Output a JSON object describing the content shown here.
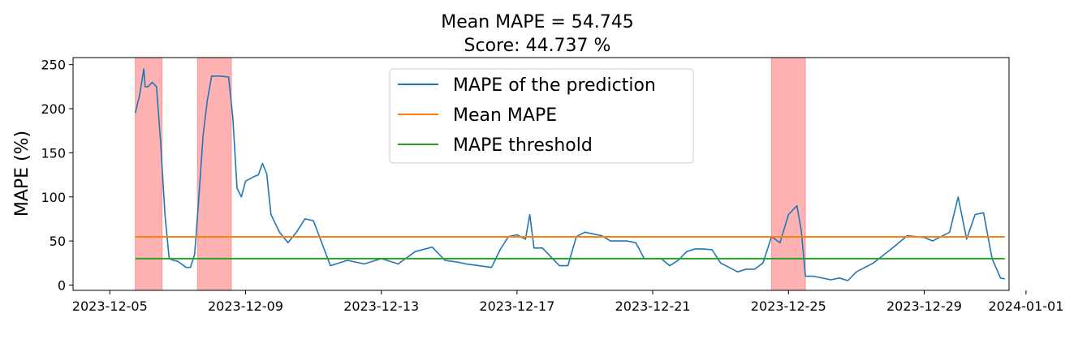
{
  "chart_data": {
    "type": "line",
    "title": "Mean MAPE = 54.745",
    "subtitle": "Score: 44.737 %",
    "xlabel": "",
    "ylabel": "MAPE (%)",
    "xlim": [
      "2023-12-03T22:00",
      "2023-12-31T12:00"
    ],
    "ylim": [
      -6,
      258
    ],
    "x_ticks": [
      "2023-12-05",
      "2023-12-09",
      "2023-12-13",
      "2023-12-17",
      "2023-12-21",
      "2023-12-25",
      "2023-12-29",
      "2024-01-01"
    ],
    "x_tick_labels": [
      "2023-12-05",
      "2023-12-09",
      "2023-12-13",
      "2023-12-17",
      "2023-12-21",
      "2023-12-25",
      "2023-12-29",
      "2024-01-01"
    ],
    "y_ticks": [
      0,
      50,
      100,
      150,
      200,
      250
    ],
    "y_tick_labels": [
      "0",
      "50",
      "100",
      "150",
      "200",
      "250"
    ],
    "grid": false,
    "legend_position": "top-center",
    "highlight_color": "#ff0000",
    "highlighted_ranges": [
      [
        "2023-12-05T18:00",
        "2023-12-06T13:00"
      ],
      [
        "2023-12-07T14:00",
        "2023-12-08T14:00"
      ],
      [
        "2023-12-24T12:00",
        "2023-12-25T12:00"
      ]
    ],
    "series": [
      {
        "name": "MAPE of the prediction",
        "color": "#1f77b4",
        "x": [
          "2023-12-05T18:00",
          "2023-12-05T21:00",
          "2023-12-06T00:00",
          "2023-12-06T01:00",
          "2023-12-06T03:00",
          "2023-12-06T06:00",
          "2023-12-06T09:00",
          "2023-12-06T12:00",
          "2023-12-06T15:00",
          "2023-12-06T18:00",
          "2023-12-06T21:00",
          "2023-12-07T00:00",
          "2023-12-07T06:00",
          "2023-12-07T09:00",
          "2023-12-07T12:00",
          "2023-12-07T15:00",
          "2023-12-07T18:00",
          "2023-12-07T21:00",
          "2023-12-08T00:00",
          "2023-12-08T06:00",
          "2023-12-08T12:00",
          "2023-12-08T15:00",
          "2023-12-08T18:00",
          "2023-12-08T21:00",
          "2023-12-09T00:00",
          "2023-12-09T06:00",
          "2023-12-09T09:00",
          "2023-12-09T12:00",
          "2023-12-09T15:00",
          "2023-12-09T18:00",
          "2023-12-10T00:00",
          "2023-12-10T06:00",
          "2023-12-10T12:00",
          "2023-12-10T18:00",
          "2023-12-11T00:00",
          "2023-12-11T12:00",
          "2023-12-12T00:00",
          "2023-12-12T12:00",
          "2023-12-13T00:00",
          "2023-12-13T12:00",
          "2023-12-14T00:00",
          "2023-12-14T12:00",
          "2023-12-14T21:00",
          "2023-12-15T06:00",
          "2023-12-15T12:00",
          "2023-12-15T21:00",
          "2023-12-16T06:00",
          "2023-12-16T12:00",
          "2023-12-16T18:00",
          "2023-12-17T00:00",
          "2023-12-17T06:00",
          "2023-12-17T09:00",
          "2023-12-17T12:00",
          "2023-12-17T18:00",
          "2023-12-18T06:00",
          "2023-12-18T12:00",
          "2023-12-18T18:00",
          "2023-12-19T00:00",
          "2023-12-19T12:00",
          "2023-12-19T18:00",
          "2023-12-20T00:00",
          "2023-12-20T06:00",
          "2023-12-20T12:00",
          "2023-12-20T18:00",
          "2023-12-21T00:00",
          "2023-12-21T06:00",
          "2023-12-21T12:00",
          "2023-12-21T18:00",
          "2023-12-22T00:00",
          "2023-12-22T06:00",
          "2023-12-22T12:00",
          "2023-12-22T18:00",
          "2023-12-23T00:00",
          "2023-12-23T06:00",
          "2023-12-23T12:00",
          "2023-12-23T18:00",
          "2023-12-24T00:00",
          "2023-12-24T06:00",
          "2023-12-24T12:00",
          "2023-12-24T18:00",
          "2023-12-25T00:00",
          "2023-12-25T03:00",
          "2023-12-25T06:00",
          "2023-12-25T09:00",
          "2023-12-25T12:00",
          "2023-12-25T18:00",
          "2023-12-26T00:00",
          "2023-12-26T06:00",
          "2023-12-26T12:00",
          "2023-12-26T18:00",
          "2023-12-27T00:00",
          "2023-12-27T12:00",
          "2023-12-28T00:00",
          "2023-12-28T12:00",
          "2023-12-29T00:00",
          "2023-12-29T06:00",
          "2023-12-29T12:00",
          "2023-12-29T18:00",
          "2023-12-30T00:00",
          "2023-12-30T06:00",
          "2023-12-30T12:00",
          "2023-12-30T18:00",
          "2023-12-31T00:00",
          "2023-12-31T06:00",
          "2023-12-31T09:00"
        ],
        "y": [
          195,
          215,
          245,
          225,
          225,
          230,
          225,
          160,
          80,
          30,
          28,
          27,
          20,
          20,
          35,
          100,
          170,
          210,
          237,
          237,
          236,
          190,
          110,
          100,
          118,
          123,
          125,
          138,
          126,
          80,
          60,
          48,
          60,
          75,
          73,
          22,
          28,
          24,
          30,
          24,
          38,
          43,
          28,
          26,
          24,
          22,
          20,
          40,
          55,
          57,
          52,
          80,
          42,
          42,
          22,
          22,
          55,
          60,
          56,
          50,
          50,
          50,
          48,
          30,
          30,
          30,
          22,
          28,
          38,
          41,
          41,
          40,
          25,
          20,
          15,
          18,
          18,
          25,
          55,
          48,
          80,
          85,
          90,
          62,
          10,
          10,
          8,
          6,
          8,
          5,
          15,
          25,
          40,
          56,
          54,
          50,
          55,
          60,
          100,
          52,
          80,
          82,
          30,
          8,
          7
        ]
      },
      {
        "name": "Mean MAPE",
        "color": "#ff7f0e",
        "x": [
          "2023-12-05T18:00",
          "2023-12-31T09:00"
        ],
        "y": [
          54.745,
          54.745
        ]
      },
      {
        "name": "MAPE threshold",
        "color": "#2ca02c",
        "x": [
          "2023-12-05T18:00",
          "2023-12-31T09:00"
        ],
        "y": [
          30,
          30
        ]
      }
    ]
  }
}
